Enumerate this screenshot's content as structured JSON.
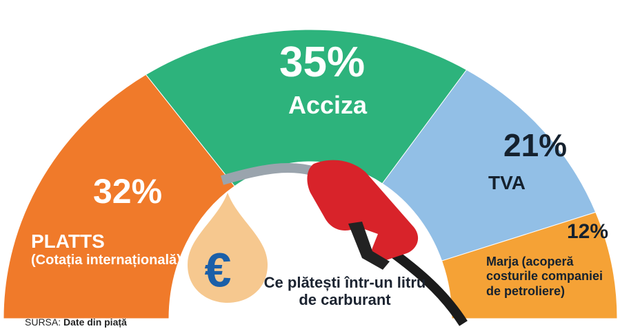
{
  "chart_data": {
    "type": "pie",
    "layout": "half-donut",
    "categories": [
      "PLATTS",
      "Acciza",
      "TVA",
      "Marja"
    ],
    "details": [
      "(Cotația internațională)",
      null,
      null,
      "(acoperă costurile companiei de petroliere)"
    ],
    "values": [
      32,
      35,
      21,
      12
    ],
    "value_labels": [
      "32%",
      "35%",
      "21%",
      "12%"
    ],
    "colors": [
      "#f07a2a",
      "#2db37c",
      "#92bfe6",
      "#f5a236"
    ],
    "center_label": "Ce plătești într-un litru de carburant",
    "icon_text": "€",
    "source_prefix": "SURSA:",
    "source": "Date din piață"
  }
}
